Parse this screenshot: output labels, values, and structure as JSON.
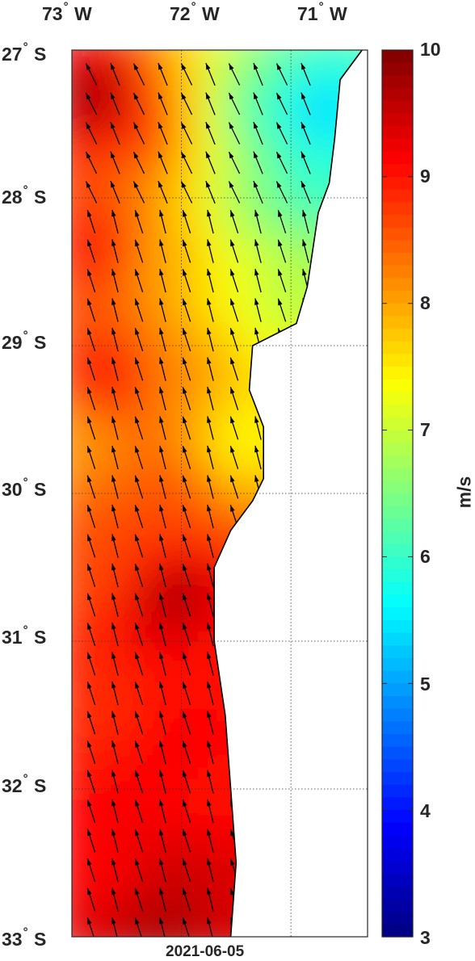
{
  "map": {
    "date": "2021-06-05",
    "lon_labels": [
      {
        "deg": "73",
        "hemi": "W"
      },
      {
        "deg": "72",
        "hemi": "W"
      },
      {
        "deg": "71",
        "hemi": "W"
      }
    ],
    "lat_labels": [
      {
        "deg": "27",
        "hemi": "S"
      },
      {
        "deg": "28",
        "hemi": "S"
      },
      {
        "deg": "29",
        "hemi": "S"
      },
      {
        "deg": "30",
        "hemi": "S"
      },
      {
        "deg": "31",
        "hemi": "S"
      },
      {
        "deg": "32",
        "hemi": "S"
      },
      {
        "deg": "33",
        "hemi": "S"
      }
    ],
    "lon_range": [
      -73.0,
      -70.3
    ],
    "lat_range": [
      -33.0,
      -27.0
    ],
    "gridlines": true,
    "land_color": "#ffffff",
    "coast": [
      [
        -70.35,
        -27.0
      ],
      [
        -70.55,
        -27.2
      ],
      [
        -70.6,
        -27.6
      ],
      [
        -70.65,
        -27.9
      ],
      [
        -70.75,
        -28.1
      ],
      [
        -70.8,
        -28.35
      ],
      [
        -70.85,
        -28.6
      ],
      [
        -70.95,
        -28.85
      ],
      [
        -71.35,
        -29.0
      ],
      [
        -71.38,
        -29.3
      ],
      [
        -71.25,
        -29.55
      ],
      [
        -71.25,
        -29.9
      ],
      [
        -71.35,
        -30.05
      ],
      [
        -71.55,
        -30.25
      ],
      [
        -71.7,
        -30.5
      ],
      [
        -71.7,
        -31.0
      ],
      [
        -71.6,
        -31.5
      ],
      [
        -71.55,
        -32.0
      ],
      [
        -71.5,
        -32.5
      ],
      [
        -71.55,
        -33.0
      ]
    ]
  },
  "colorbar": {
    "min": 3,
    "max": 10,
    "ticks": [
      "10",
      "9",
      "8",
      "7",
      "6",
      "5",
      "4",
      "3"
    ],
    "unit": "m/s",
    "colormap": "jet"
  },
  "chart_data": {
    "type": "heatmap",
    "quantity": "wind speed",
    "unit": "m/s",
    "direction": "north-northwest",
    "speed_samples": [
      {
        "lon": -72.8,
        "lat": -27.3,
        "value": 9.9
      },
      {
        "lon": -72.2,
        "lat": -27.5,
        "value": 9.0
      },
      {
        "lon": -71.9,
        "lat": -27.5,
        "value": 7.2
      },
      {
        "lon": -71.4,
        "lat": -27.4,
        "value": 6.0
      },
      {
        "lon": -70.8,
        "lat": -27.4,
        "value": 5.2
      },
      {
        "lon": -70.9,
        "lat": -27.9,
        "value": 5.8
      },
      {
        "lon": -71.3,
        "lat": -28.0,
        "value": 6.5
      },
      {
        "lon": -72.8,
        "lat": -28.3,
        "value": 9.1
      },
      {
        "lon": -72.2,
        "lat": -28.4,
        "value": 8.0
      },
      {
        "lon": -71.5,
        "lat": -28.5,
        "value": 7.3
      },
      {
        "lon": -71.1,
        "lat": -28.6,
        "value": 6.8
      },
      {
        "lon": -72.7,
        "lat": -29.2,
        "value": 9.2
      },
      {
        "lon": -72.1,
        "lat": -29.2,
        "value": 8.2
      },
      {
        "lon": -71.5,
        "lat": -29.6,
        "value": 7.3
      },
      {
        "lon": -72.9,
        "lat": -29.6,
        "value": 8.0
      },
      {
        "lon": -72.2,
        "lat": -30.0,
        "value": 8.6
      },
      {
        "lon": -72.1,
        "lat": -30.7,
        "value": 9.9
      },
      {
        "lon": -72.8,
        "lat": -30.5,
        "value": 8.6
      },
      {
        "lon": -71.8,
        "lat": -31.0,
        "value": 9.0
      },
      {
        "lon": -72.7,
        "lat": -31.4,
        "value": 8.8
      },
      {
        "lon": -72.1,
        "lat": -31.7,
        "value": 9.2
      },
      {
        "lon": -71.8,
        "lat": -32.0,
        "value": 9.0
      },
      {
        "lon": -72.7,
        "lat": -32.5,
        "value": 9.1
      },
      {
        "lon": -72.1,
        "lat": -32.6,
        "value": 9.5
      },
      {
        "lon": -72.2,
        "lat": -32.9,
        "value": 9.8
      },
      {
        "lon": -71.7,
        "lat": -32.8,
        "value": 9.4
      }
    ]
  }
}
